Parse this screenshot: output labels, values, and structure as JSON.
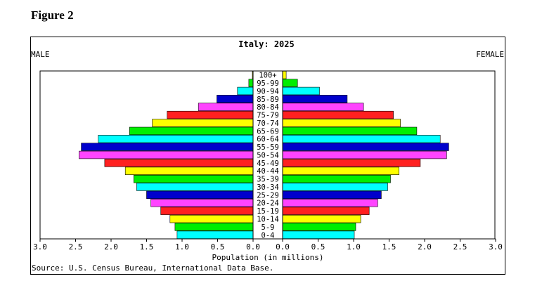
{
  "figure_label": "Figure 2",
  "chart_data": {
    "type": "bar",
    "orientation": "horizontal",
    "title": "Italy: 2025",
    "left_label": "MALE",
    "right_label": "FEMALE",
    "xlabel": "Population (in millions)",
    "source": "Source: U.S. Census Bureau, International Data Base.",
    "xlim": [
      0,
      3.0
    ],
    "x_ticks": [
      "3.0",
      "2.5",
      "2.0",
      "1.5",
      "1.0",
      "0.5",
      "0.0"
    ],
    "x_ticks_right": [
      "0.0",
      "0.5",
      "1.0",
      "1.5",
      "2.0",
      "2.5",
      "3.0"
    ],
    "categories": [
      "100+",
      "95-99",
      "90-94",
      "85-89",
      "80-84",
      "75-79",
      "70-74",
      "65-69",
      "60-64",
      "55-59",
      "50-54",
      "45-49",
      "40-44",
      "35-39",
      "30-34",
      "25-29",
      "20-24",
      "15-19",
      "10-14",
      "5-9",
      "0-4"
    ],
    "series": [
      {
        "name": "MALE",
        "values": [
          0.01,
          0.06,
          0.22,
          0.51,
          0.77,
          1.21,
          1.42,
          1.74,
          2.18,
          2.42,
          2.45,
          2.09,
          1.8,
          1.68,
          1.64,
          1.5,
          1.44,
          1.3,
          1.17,
          1.1,
          1.07
        ]
      },
      {
        "name": "FEMALE",
        "values": [
          0.05,
          0.21,
          0.52,
          0.91,
          1.14,
          1.56,
          1.66,
          1.89,
          2.22,
          2.34,
          2.31,
          1.94,
          1.64,
          1.52,
          1.48,
          1.39,
          1.34,
          1.22,
          1.1,
          1.03,
          1.01
        ]
      }
    ],
    "colors": [
      "#ffff00",
      "#00ee00",
      "#00ffff",
      "#0000cc",
      "#ff44ff",
      "#ff2020"
    ],
    "grid": false
  }
}
